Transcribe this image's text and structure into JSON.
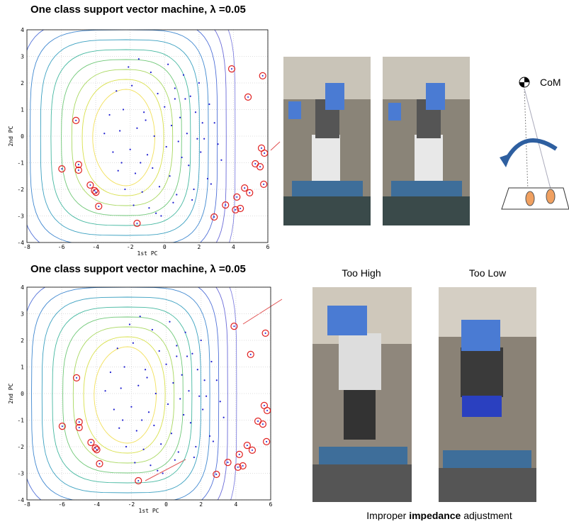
{
  "chart_data": [
    {
      "type": "scatter",
      "title": "One class support vector machine, λ =0.05",
      "x_label": "1st PC",
      "y_label": "2nd PC",
      "xlim": [
        -8,
        6
      ],
      "ylim": [
        -4,
        4
      ],
      "xticks": [
        -8,
        -6,
        -4,
        -2,
        0,
        2,
        4,
        6
      ],
      "yticks": [
        -4,
        -3,
        -2,
        -1,
        0,
        1,
        2,
        3,
        4
      ],
      "grid": true,
      "series": [
        {
          "color": "#2020d0",
          "marker": "dot",
          "x": [
            -2.1,
            -1.5,
            -0.8,
            0.2,
            1.1,
            2.0,
            -2.8,
            -1.9,
            -0.4,
            0.6,
            1.5,
            2.6,
            -3.2,
            -2.4,
            -1.2,
            0.0,
            0.9,
            1.8,
            2.9,
            -3.5,
            -2.6,
            -1.6,
            -0.6,
            0.4,
            1.3,
            2.3,
            3.1,
            -3.0,
            -2.0,
            -1.0,
            0.1,
            1.0,
            2.1,
            3.3,
            -2.7,
            -1.7,
            -0.7,
            0.3,
            1.4,
            2.5,
            -2.3,
            -1.3,
            -0.3,
            0.7,
            1.7,
            2.7,
            -1.8,
            -0.9,
            0.5,
            1.6,
            -0.2,
            -1.1,
            0.8,
            2.2,
            -2.5,
            1.2,
            -1.4,
            0.6,
            -0.5,
            1.9
          ],
          "values": [
            2.6,
            2.9,
            2.4,
            2.7,
            2.3,
            2.0,
            1.7,
            1.9,
            1.6,
            1.8,
            1.5,
            1.2,
            0.8,
            1.0,
            0.9,
            1.1,
            0.7,
            0.9,
            0.5,
            0.1,
            0.2,
            0.3,
            0.0,
            0.4,
            0.1,
            -0.1,
            -0.3,
            -0.6,
            -0.5,
            -0.7,
            -0.4,
            -0.8,
            -0.6,
            -0.9,
            -1.3,
            -1.4,
            -1.2,
            -1.5,
            -1.1,
            -1.6,
            -2.0,
            -2.1,
            -1.9,
            -2.2,
            -2.0,
            -1.8,
            -2.6,
            -2.7,
            -2.5,
            -2.4,
            -3.0,
            0.6,
            -0.2,
            0.5,
            -1.0,
            1.4,
            -1.0,
            1.4,
            -2.9,
            -0.1
          ]
        },
        {
          "color": "#e02020",
          "marker": "circle",
          "x": [
            3.9,
            5.7,
            4.85,
            -5.15,
            -5.97,
            -5.0,
            -5.0,
            5.63,
            5.8,
            5.27,
            5.55,
            5.76,
            4.65,
            4.94,
            -4.32,
            -4.07,
            -3.99,
            -3.83,
            4.2,
            3.54,
            4.4,
            4.12,
            2.88,
            -1.6
          ],
          "values": [
            2.53,
            2.27,
            1.47,
            0.59,
            -1.23,
            -1.07,
            -1.28,
            -0.45,
            -0.64,
            -1.04,
            -1.15,
            -1.81,
            -1.95,
            -2.13,
            -1.84,
            -2.05,
            -2.11,
            -2.64,
            -2.29,
            -2.59,
            -2.72,
            -2.77,
            -3.04,
            -3.28
          ]
        }
      ]
    },
    {
      "type": "scatter",
      "title": "One class support vector machine, λ =0.05",
      "x_label": "1st PC",
      "y_label": "2nd PC",
      "xlim": [
        -8,
        6
      ],
      "ylim": [
        -4,
        4
      ],
      "xticks": [
        -8,
        -6,
        -4,
        -2,
        0,
        2,
        4,
        6
      ],
      "yticks": [
        -4,
        -3,
        -2,
        -1,
        0,
        1,
        2,
        3,
        4
      ],
      "grid": true,
      "series": [
        {
          "color": "#2020d0",
          "marker": "dot",
          "x": [
            -2.1,
            -1.5,
            -0.8,
            0.2,
            1.1,
            2.0,
            -2.8,
            -1.9,
            -0.4,
            0.6,
            1.5,
            2.6,
            -3.2,
            -2.4,
            -1.2,
            0.0,
            0.9,
            1.8,
            2.9,
            -3.5,
            -2.6,
            -1.6,
            -0.6,
            0.4,
            1.3,
            2.3,
            3.1,
            -3.0,
            -2.0,
            -1.0,
            0.1,
            1.0,
            2.1,
            3.3,
            -2.7,
            -1.7,
            -0.7,
            0.3,
            1.4,
            2.5,
            -2.3,
            -1.3,
            -0.3,
            0.7,
            1.7,
            2.7,
            -1.8,
            -0.9,
            0.5,
            1.6,
            -0.2,
            -1.1,
            0.8,
            2.2,
            -2.5,
            1.2,
            -1.4,
            0.6,
            -0.5,
            1.9
          ],
          "values": [
            2.6,
            2.9,
            2.4,
            2.7,
            2.3,
            2.0,
            1.7,
            1.9,
            1.6,
            1.8,
            1.5,
            1.2,
            0.8,
            1.0,
            0.9,
            1.1,
            0.7,
            0.9,
            0.5,
            0.1,
            0.2,
            0.3,
            0.0,
            0.4,
            0.1,
            -0.1,
            -0.3,
            -0.6,
            -0.5,
            -0.7,
            -0.4,
            -0.8,
            -0.6,
            -0.9,
            -1.3,
            -1.4,
            -1.2,
            -1.5,
            -1.1,
            -1.6,
            -2.0,
            -2.1,
            -1.9,
            -2.2,
            -2.0,
            -1.8,
            -2.6,
            -2.7,
            -2.5,
            -2.4,
            -3.0,
            0.6,
            -0.2,
            0.5,
            -1.0,
            1.4,
            -1.0,
            1.4,
            -2.9,
            -0.1
          ]
        },
        {
          "color": "#e02020",
          "marker": "circle",
          "x": [
            3.9,
            5.7,
            4.85,
            -5.15,
            -5.97,
            -5.0,
            -5.0,
            5.63,
            5.8,
            5.27,
            5.55,
            5.76,
            4.65,
            4.94,
            -4.32,
            -4.07,
            -3.99,
            -3.83,
            4.2,
            3.54,
            4.4,
            4.12,
            2.88,
            -1.6
          ],
          "values": [
            2.53,
            2.27,
            1.47,
            0.59,
            -1.23,
            -1.07,
            -1.28,
            -0.45,
            -0.64,
            -1.04,
            -1.15,
            -1.81,
            -1.95,
            -2.13,
            -1.84,
            -2.05,
            -2.11,
            -2.64,
            -2.29,
            -2.59,
            -2.72,
            -2.77,
            -3.04,
            -3.28
          ]
        }
      ]
    }
  ],
  "panels": {
    "com_label": "CoM",
    "too_high": "Too High",
    "too_low": "Too Low",
    "caption": [
      "Improper ",
      "impedance",
      " adjustment"
    ]
  }
}
